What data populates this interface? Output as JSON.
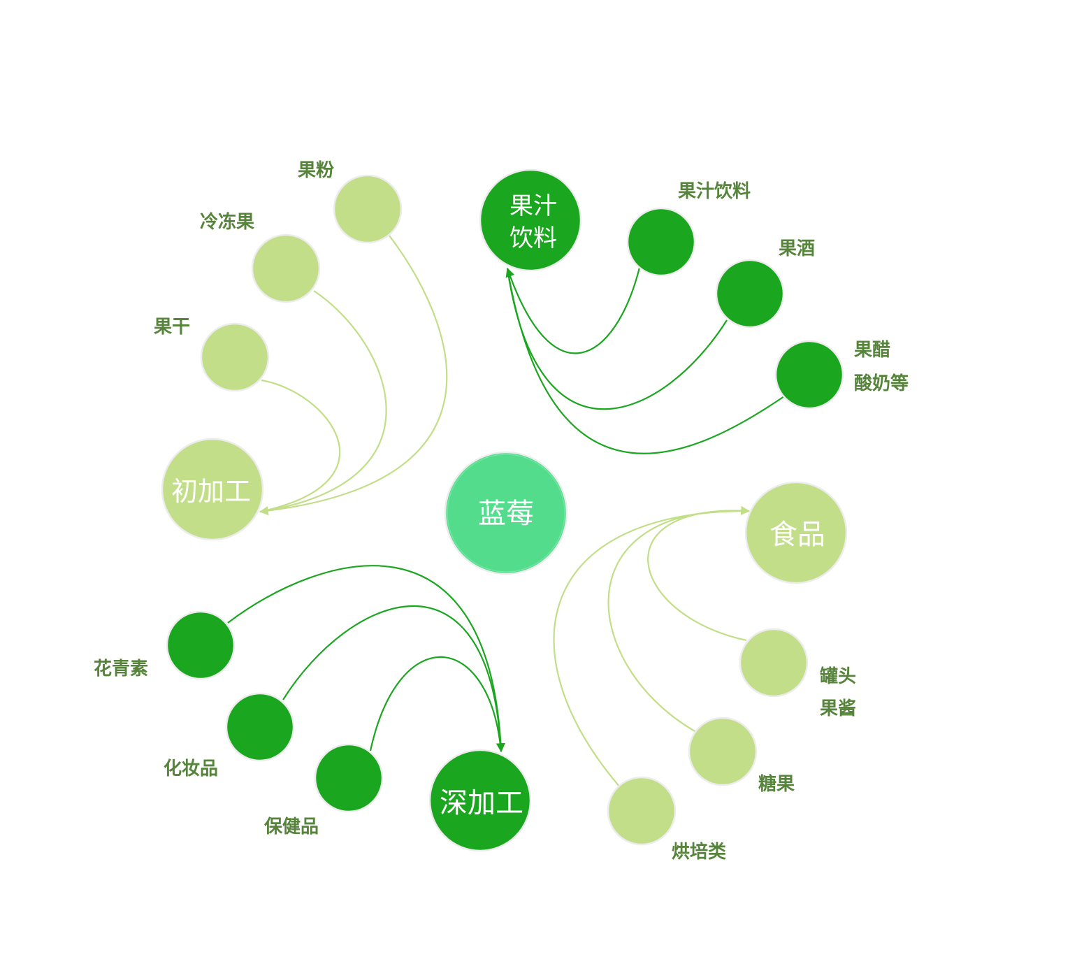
{
  "colors": {
    "center": "#52dc8c",
    "dark_green": "#1ba61f",
    "light_green": "#c2de88",
    "label": "#55843a",
    "white_text": "#ffffff"
  },
  "center": {
    "label": "蓝莓"
  },
  "categories": {
    "juice_drinks": {
      "label_line1": "果汁",
      "label_line2": "饮料"
    },
    "primary_processing": {
      "label": "初加工"
    },
    "food": {
      "label": "食品"
    },
    "deep_processing": {
      "label": "深加工"
    }
  },
  "items": {
    "juice_drink": "果汁饮料",
    "fruit_wine": "果酒",
    "vinegar_line1": "果醋",
    "vinegar_line2": "酸奶等",
    "fruit_powder": "果粉",
    "frozen_fruit": "冷冻果",
    "dried_fruit": "果干",
    "canned_line1": "罐头",
    "canned_line2": "果酱",
    "candy": "糖果",
    "bakery": "烘培类",
    "anthocyanin": "花青素",
    "cosmetics": "化妆品",
    "health_products": "保健品"
  }
}
